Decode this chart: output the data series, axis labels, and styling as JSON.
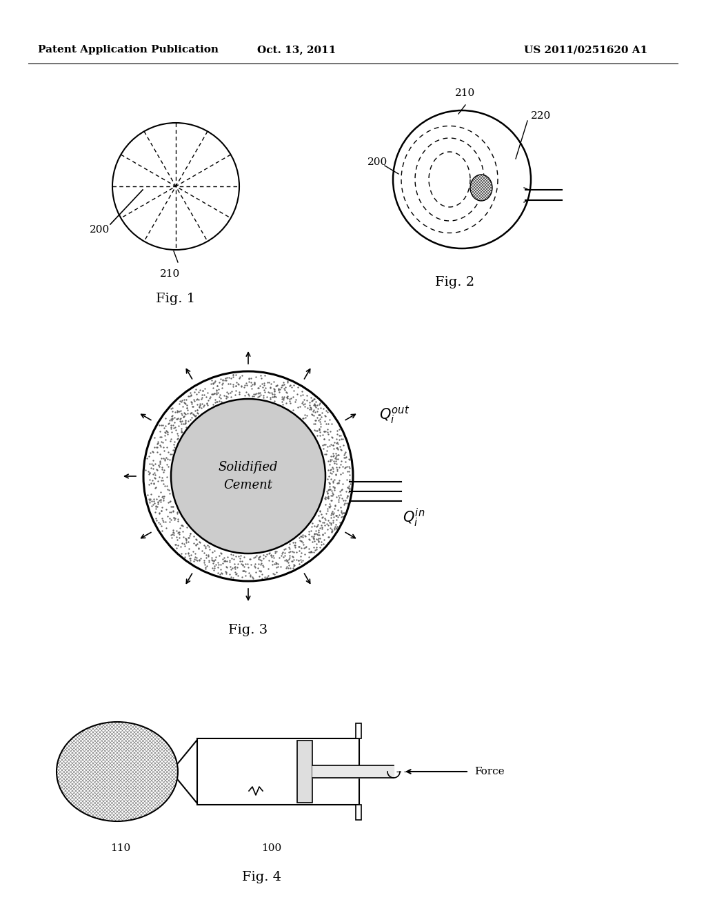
{
  "bg_color": "#ffffff",
  "header_left": "Patent Application Publication",
  "header_center": "Oct. 13, 2011",
  "header_right": "US 2011/0251620 A1",
  "fig1_label": "Fig. 1",
  "fig2_label": "Fig. 2",
  "fig3_label": "Fig. 3",
  "fig4_label": "Fig. 4",
  "label_200_fig1": "200",
  "label_210_fig1": "210",
  "label_200_fig2": "200",
  "label_210_fig2": "210",
  "label_220_fig2": "220",
  "label_solidified": "Solidified\nCement",
  "label_q_out": "$Q_i^{out}$",
  "label_q_in": "$Q_i^{in}$",
  "label_110": "110",
  "label_100": "100",
  "label_force": "Force"
}
